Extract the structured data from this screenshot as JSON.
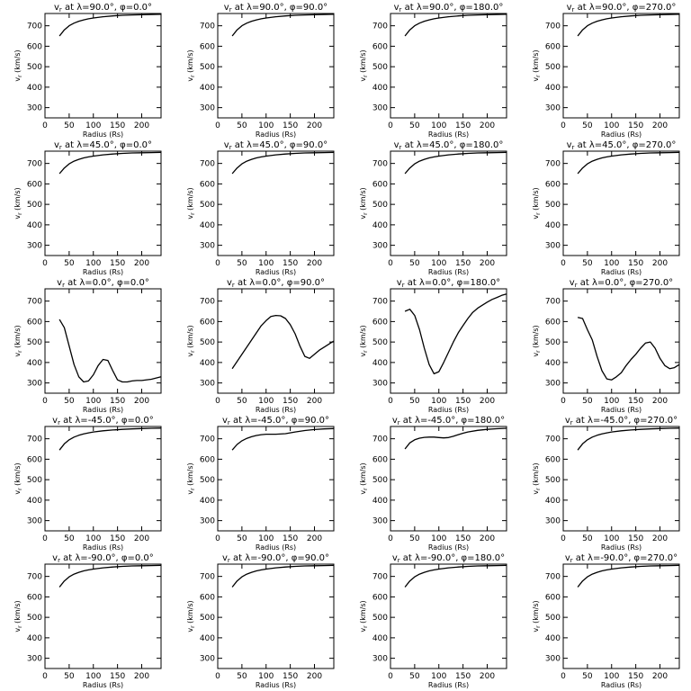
{
  "figure": {
    "xlabel": "Radius (Rs)",
    "ylabel_var": "v",
    "ylabel_sub": "r",
    "ylabel_unit": "(km/s)",
    "title_var": "v",
    "title_sub": "r",
    "title_at": "at",
    "lambda_symbol": "λ",
    "phi_symbol": "φ",
    "degree": "°",
    "line_color": "#000000"
  },
  "chart_data": [
    {
      "type": "line",
      "lambda": "90.0",
      "phi": "0.0",
      "xlim": [
        0,
        240
      ],
      "ylim": [
        250,
        760
      ],
      "xticks": [
        0,
        50,
        100,
        150,
        200
      ],
      "yticks": [
        300,
        400,
        500,
        600,
        700
      ],
      "x": [
        30,
        40,
        50,
        60,
        70,
        80,
        90,
        100,
        120,
        140,
        160,
        180,
        200,
        220,
        240
      ],
      "y": [
        650,
        680,
        700,
        713,
        722,
        729,
        734,
        738,
        744,
        748,
        751,
        753,
        754,
        755,
        756
      ]
    },
    {
      "type": "line",
      "lambda": "90.0",
      "phi": "90.0",
      "xlim": [
        0,
        240
      ],
      "ylim": [
        250,
        760
      ],
      "xticks": [
        0,
        50,
        100,
        150,
        200
      ],
      "yticks": [
        300,
        400,
        500,
        600,
        700
      ],
      "x": [
        30,
        40,
        50,
        60,
        70,
        80,
        90,
        100,
        120,
        140,
        160,
        180,
        200,
        220,
        240
      ],
      "y": [
        650,
        680,
        700,
        713,
        722,
        729,
        734,
        738,
        744,
        748,
        751,
        753,
        754,
        755,
        756
      ]
    },
    {
      "type": "line",
      "lambda": "90.0",
      "phi": "180.0",
      "xlim": [
        0,
        240
      ],
      "ylim": [
        250,
        760
      ],
      "xticks": [
        0,
        50,
        100,
        150,
        200
      ],
      "yticks": [
        300,
        400,
        500,
        600,
        700
      ],
      "x": [
        30,
        40,
        50,
        60,
        70,
        80,
        90,
        100,
        120,
        140,
        160,
        180,
        200,
        220,
        240
      ],
      "y": [
        650,
        680,
        700,
        713,
        722,
        729,
        734,
        738,
        744,
        748,
        751,
        753,
        754,
        755,
        756
      ]
    },
    {
      "type": "line",
      "lambda": "90.0",
      "phi": "270.0",
      "xlim": [
        0,
        240
      ],
      "ylim": [
        250,
        760
      ],
      "xticks": [
        0,
        50,
        100,
        150,
        200
      ],
      "yticks": [
        300,
        400,
        500,
        600,
        700
      ],
      "x": [
        30,
        40,
        50,
        60,
        70,
        80,
        90,
        100,
        120,
        140,
        160,
        180,
        200,
        220,
        240
      ],
      "y": [
        650,
        680,
        700,
        713,
        722,
        729,
        734,
        738,
        744,
        748,
        751,
        753,
        754,
        755,
        756
      ]
    },
    {
      "type": "line",
      "lambda": "45.0",
      "phi": "0.0",
      "xlim": [
        0,
        240
      ],
      "ylim": [
        250,
        760
      ],
      "xticks": [
        0,
        50,
        100,
        150,
        200
      ],
      "yticks": [
        300,
        400,
        500,
        600,
        700
      ],
      "x": [
        30,
        40,
        50,
        60,
        70,
        80,
        90,
        100,
        120,
        140,
        160,
        180,
        200,
        220,
        240
      ],
      "y": [
        650,
        678,
        698,
        711,
        720,
        727,
        732,
        736,
        742,
        746,
        749,
        751,
        752,
        753,
        754
      ]
    },
    {
      "type": "line",
      "lambda": "45.0",
      "phi": "90.0",
      "xlim": [
        0,
        240
      ],
      "ylim": [
        250,
        760
      ],
      "xticks": [
        0,
        50,
        100,
        150,
        200
      ],
      "yticks": [
        300,
        400,
        500,
        600,
        700
      ],
      "x": [
        30,
        40,
        50,
        60,
        70,
        80,
        90,
        100,
        120,
        140,
        160,
        180,
        200,
        220,
        240
      ],
      "y": [
        650,
        678,
        698,
        711,
        720,
        727,
        732,
        736,
        742,
        746,
        749,
        751,
        752,
        753,
        754
      ]
    },
    {
      "type": "line",
      "lambda": "45.0",
      "phi": "180.0",
      "xlim": [
        0,
        240
      ],
      "ylim": [
        250,
        760
      ],
      "xticks": [
        0,
        50,
        100,
        150,
        200
      ],
      "yticks": [
        300,
        400,
        500,
        600,
        700
      ],
      "x": [
        30,
        40,
        50,
        60,
        70,
        80,
        90,
        100,
        120,
        140,
        160,
        180,
        200,
        220,
        240
      ],
      "y": [
        650,
        678,
        698,
        711,
        720,
        727,
        732,
        736,
        742,
        746,
        749,
        751,
        752,
        753,
        754
      ]
    },
    {
      "type": "line",
      "lambda": "45.0",
      "phi": "270.0",
      "xlim": [
        0,
        240
      ],
      "ylim": [
        250,
        760
      ],
      "xticks": [
        0,
        50,
        100,
        150,
        200
      ],
      "yticks": [
        300,
        400,
        500,
        600,
        700
      ],
      "x": [
        30,
        40,
        50,
        60,
        70,
        80,
        90,
        100,
        120,
        140,
        160,
        180,
        200,
        220,
        240
      ],
      "y": [
        650,
        678,
        698,
        711,
        720,
        727,
        732,
        736,
        742,
        746,
        749,
        751,
        752,
        753,
        754
      ]
    },
    {
      "type": "line",
      "lambda": "0.0",
      "phi": "0.0",
      "xlim": [
        0,
        240
      ],
      "ylim": [
        250,
        760
      ],
      "xticks": [
        0,
        50,
        100,
        150,
        200
      ],
      "yticks": [
        300,
        400,
        500,
        600,
        700
      ],
      "x": [
        30,
        40,
        50,
        60,
        70,
        80,
        90,
        100,
        110,
        120,
        130,
        140,
        150,
        160,
        170,
        180,
        190,
        200,
        220,
        240
      ],
      "y": [
        610,
        570,
        480,
        390,
        330,
        305,
        310,
        340,
        385,
        415,
        410,
        360,
        315,
        305,
        305,
        310,
        312,
        312,
        318,
        330
      ]
    },
    {
      "type": "line",
      "lambda": "0.0",
      "phi": "90.0",
      "xlim": [
        0,
        240
      ],
      "ylim": [
        250,
        760
      ],
      "xticks": [
        0,
        50,
        100,
        150,
        200
      ],
      "yticks": [
        300,
        400,
        500,
        600,
        700
      ],
      "x": [
        30,
        40,
        50,
        60,
        70,
        80,
        90,
        100,
        110,
        120,
        130,
        140,
        150,
        160,
        170,
        180,
        190,
        200,
        210,
        220,
        230,
        240
      ],
      "y": [
        370,
        405,
        440,
        475,
        510,
        545,
        580,
        605,
        625,
        630,
        628,
        615,
        585,
        540,
        480,
        430,
        420,
        440,
        460,
        475,
        490,
        505
      ]
    },
    {
      "type": "line",
      "lambda": "0.0",
      "phi": "180.0",
      "xlim": [
        0,
        240
      ],
      "ylim": [
        250,
        760
      ],
      "xticks": [
        0,
        50,
        100,
        150,
        200
      ],
      "yticks": [
        300,
        400,
        500,
        600,
        700
      ],
      "x": [
        30,
        40,
        50,
        60,
        70,
        80,
        90,
        100,
        110,
        120,
        130,
        140,
        150,
        160,
        170,
        180,
        190,
        200,
        210,
        220,
        230,
        240
      ],
      "y": [
        650,
        660,
        630,
        560,
        470,
        390,
        345,
        355,
        400,
        450,
        500,
        545,
        580,
        615,
        645,
        665,
        680,
        695,
        708,
        718,
        728,
        735
      ]
    },
    {
      "type": "line",
      "lambda": "0.0",
      "phi": "270.0",
      "xlim": [
        0,
        240
      ],
      "ylim": [
        250,
        760
      ],
      "xticks": [
        0,
        50,
        100,
        150,
        200
      ],
      "yticks": [
        300,
        400,
        500,
        600,
        700
      ],
      "x": [
        30,
        40,
        50,
        60,
        70,
        80,
        90,
        100,
        110,
        120,
        130,
        140,
        150,
        160,
        170,
        180,
        190,
        200,
        210,
        220,
        230,
        240
      ],
      "y": [
        620,
        615,
        560,
        510,
        430,
        360,
        320,
        315,
        330,
        350,
        385,
        415,
        440,
        470,
        495,
        500,
        470,
        420,
        385,
        370,
        375,
        390
      ]
    },
    {
      "type": "line",
      "lambda": "-45.0",
      "phi": "0.0",
      "xlim": [
        0,
        240
      ],
      "ylim": [
        250,
        760
      ],
      "xticks": [
        0,
        50,
        100,
        150,
        200
      ],
      "yticks": [
        300,
        400,
        500,
        600,
        700
      ],
      "x": [
        30,
        40,
        50,
        60,
        70,
        80,
        90,
        100,
        120,
        140,
        160,
        180,
        200,
        220,
        240
      ],
      "y": [
        645,
        675,
        695,
        708,
        717,
        724,
        729,
        733,
        739,
        743,
        746,
        748,
        750,
        751,
        752
      ]
    },
    {
      "type": "line",
      "lambda": "-45.0",
      "phi": "90.0",
      "xlim": [
        0,
        240
      ],
      "ylim": [
        250,
        760
      ],
      "xticks": [
        0,
        50,
        100,
        150,
        200
      ],
      "yticks": [
        300,
        400,
        500,
        600,
        700
      ],
      "x": [
        30,
        40,
        50,
        60,
        70,
        80,
        90,
        100,
        110,
        120,
        140,
        160,
        180,
        200,
        220,
        240
      ],
      "y": [
        645,
        672,
        690,
        702,
        710,
        716,
        720,
        722,
        722,
        722,
        725,
        733,
        740,
        745,
        748,
        750
      ]
    },
    {
      "type": "line",
      "lambda": "-45.0",
      "phi": "180.0",
      "xlim": [
        0,
        240
      ],
      "ylim": [
        250,
        760
      ],
      "xticks": [
        0,
        50,
        100,
        150,
        200
      ],
      "yticks": [
        300,
        400,
        500,
        600,
        700
      ],
      "x": [
        30,
        40,
        50,
        60,
        70,
        80,
        90,
        100,
        110,
        120,
        130,
        140,
        150,
        160,
        180,
        200,
        220,
        240
      ],
      "y": [
        650,
        680,
        695,
        703,
        707,
        708,
        708,
        706,
        704,
        706,
        712,
        720,
        727,
        733,
        741,
        746,
        749,
        751
      ]
    },
    {
      "type": "line",
      "lambda": "-45.0",
      "phi": "270.0",
      "xlim": [
        0,
        240
      ],
      "ylim": [
        250,
        760
      ],
      "xticks": [
        0,
        50,
        100,
        150,
        200
      ],
      "yticks": [
        300,
        400,
        500,
        600,
        700
      ],
      "x": [
        30,
        40,
        50,
        60,
        70,
        80,
        90,
        100,
        120,
        140,
        160,
        180,
        200,
        220,
        240
      ],
      "y": [
        645,
        675,
        695,
        708,
        717,
        724,
        729,
        733,
        739,
        743,
        746,
        748,
        750,
        751,
        752
      ]
    },
    {
      "type": "line",
      "lambda": "-90.0",
      "phi": "0.0",
      "xlim": [
        0,
        240
      ],
      "ylim": [
        250,
        760
      ],
      "xticks": [
        0,
        50,
        100,
        150,
        200
      ],
      "yticks": [
        300,
        400,
        500,
        600,
        700
      ],
      "x": [
        30,
        40,
        50,
        60,
        70,
        80,
        90,
        100,
        120,
        140,
        160,
        180,
        200,
        220,
        240
      ],
      "y": [
        648,
        678,
        698,
        711,
        720,
        727,
        732,
        736,
        742,
        746,
        749,
        751,
        752,
        753,
        754
      ]
    },
    {
      "type": "line",
      "lambda": "-90.0",
      "phi": "90.0",
      "xlim": [
        0,
        240
      ],
      "ylim": [
        250,
        760
      ],
      "xticks": [
        0,
        50,
        100,
        150,
        200
      ],
      "yticks": [
        300,
        400,
        500,
        600,
        700
      ],
      "x": [
        30,
        40,
        50,
        60,
        70,
        80,
        90,
        100,
        120,
        140,
        160,
        180,
        200,
        220,
        240
      ],
      "y": [
        648,
        678,
        698,
        711,
        720,
        727,
        732,
        736,
        742,
        746,
        749,
        751,
        752,
        753,
        754
      ]
    },
    {
      "type": "line",
      "lambda": "-90.0",
      "phi": "180.0",
      "xlim": [
        0,
        240
      ],
      "ylim": [
        250,
        760
      ],
      "xticks": [
        0,
        50,
        100,
        150,
        200
      ],
      "yticks": [
        300,
        400,
        500,
        600,
        700
      ],
      "x": [
        30,
        40,
        50,
        60,
        70,
        80,
        90,
        100,
        120,
        140,
        160,
        180,
        200,
        220,
        240
      ],
      "y": [
        648,
        678,
        698,
        711,
        720,
        727,
        732,
        736,
        742,
        746,
        749,
        751,
        752,
        753,
        754
      ]
    },
    {
      "type": "line",
      "lambda": "-90.0",
      "phi": "270.0",
      "xlim": [
        0,
        240
      ],
      "ylim": [
        250,
        760
      ],
      "xticks": [
        0,
        50,
        100,
        150,
        200
      ],
      "yticks": [
        300,
        400,
        500,
        600,
        700
      ],
      "x": [
        30,
        40,
        50,
        60,
        70,
        80,
        90,
        100,
        120,
        140,
        160,
        180,
        200,
        220,
        240
      ],
      "y": [
        648,
        678,
        698,
        711,
        720,
        727,
        732,
        736,
        742,
        746,
        749,
        751,
        752,
        753,
        754
      ]
    }
  ]
}
